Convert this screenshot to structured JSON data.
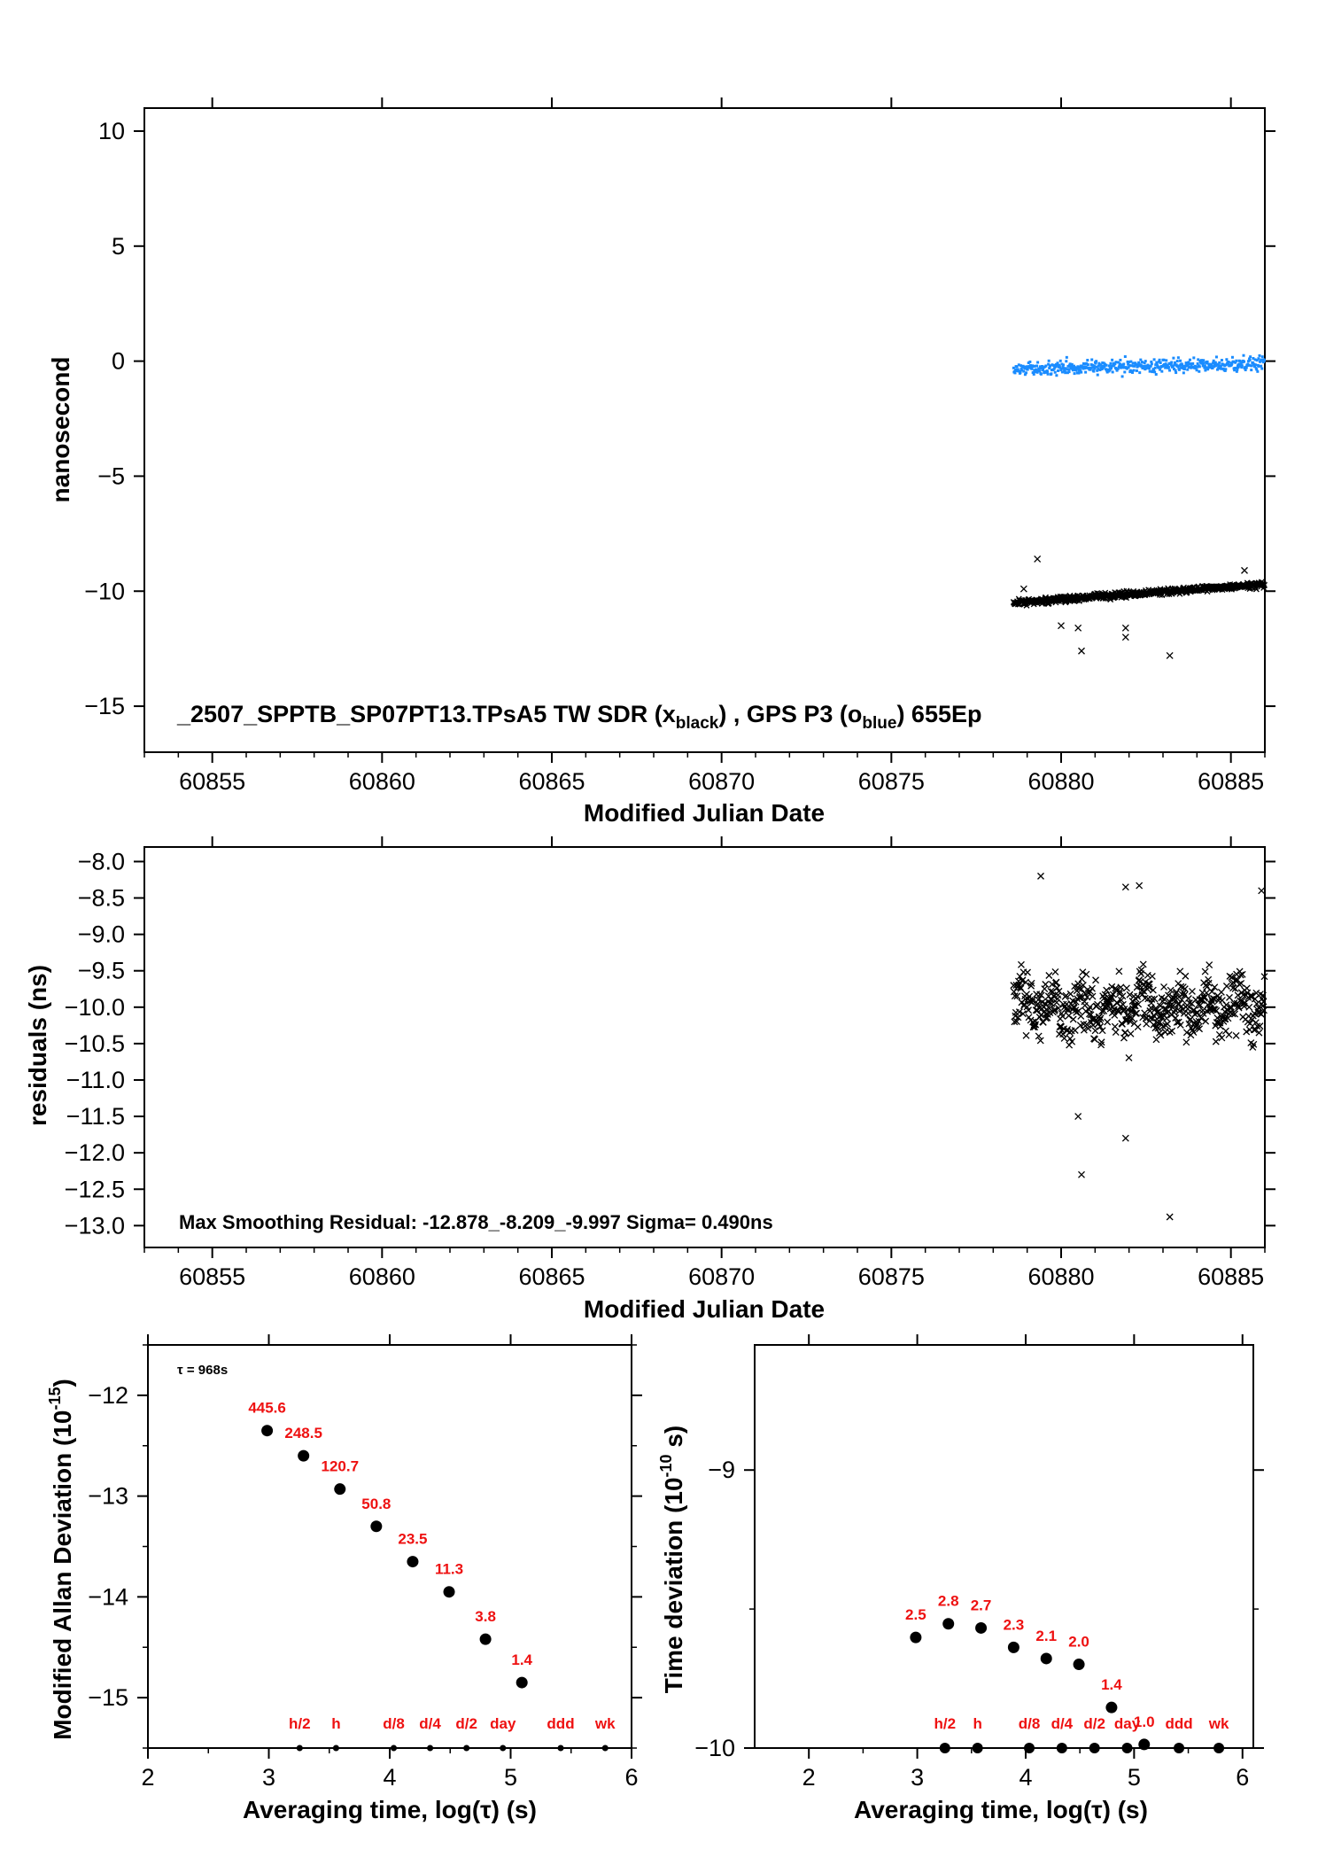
{
  "chart_data": [
    {
      "type": "scatter",
      "title": "_2507_SPPTB_SP07PT13.TPsA5     TW SDR (x",
      "title_parts": [
        "_2507_SPPTB_SP07PT13.TPsA5     TW SDR (x",
        "black",
        ") ,  GPS P3 (o",
        "blue",
        ")  655Ep"
      ],
      "xlabel": "Modified Julian Date",
      "ylabel": "nanosecond",
      "xlim": [
        60853,
        60886
      ],
      "ylim": [
        -17,
        11
      ],
      "xticks": [
        60855,
        60860,
        60865,
        60870,
        60875,
        60880,
        60885
      ],
      "yticks": [
        10,
        5,
        0,
        -5,
        -10,
        -15
      ],
      "ytick_labels": [
        "10",
        "5",
        "0",
        "−5",
        "−10",
        "−15"
      ],
      "series": [
        {
          "marker": "x",
          "color": "#000000",
          "x_range": [
            60878.6,
            60886
          ],
          "center": -10.5,
          "trend": 0.8,
          "spread": 0.12,
          "outliers": [
            [
              60879.3,
              -8.6
            ],
            [
              60878.9,
              -9.9
            ],
            [
              60880.6,
              -12.6
            ],
            [
              60880.0,
              -11.5
            ],
            [
              60881.9,
              -12.0
            ],
            [
              60881.9,
              -11.6
            ],
            [
              60883.2,
              -12.8
            ],
            [
              60885.4,
              -9.1
            ],
            [
              60880.5,
              -11.6
            ]
          ]
        },
        {
          "marker": "dot",
          "color": "#1a8cff",
          "x_range": [
            60878.6,
            60886
          ],
          "center": -0.35,
          "trend": 0.25,
          "spread": 0.3
        }
      ]
    },
    {
      "type": "scatter",
      "title": "Max Smoothing Residual: -12.878_-8.209_-9.997  Sigma= 0.490ns",
      "xlabel": "Modified Julian Date",
      "ylabel": "residuals (ns)",
      "xlim": [
        60853,
        60886
      ],
      "ylim": [
        -13.3,
        -7.8
      ],
      "xticks": [
        60855,
        60860,
        60865,
        60870,
        60875,
        60880,
        60885
      ],
      "yticks": [
        -8.0,
        -8.5,
        -9.0,
        -9.5,
        -10.0,
        -10.5,
        -11.0,
        -11.5,
        -12.0,
        -12.5,
        -13.0
      ],
      "ytick_labels": [
        "−8.0",
        "−8.5",
        "−9.0",
        "−9.5",
        "−10.0",
        "−10.5",
        "−11.0",
        "−11.5",
        "−12.0",
        "−12.5",
        "−13.0"
      ],
      "series": [
        {
          "marker": "x",
          "color": "#000000",
          "x_range": [
            60878.6,
            60886
          ],
          "center": -10.0,
          "spread": 0.4,
          "outliers": [
            [
              60879.4,
              -8.2
            ],
            [
              60880.6,
              -12.3
            ],
            [
              60881.9,
              -11.8
            ],
            [
              60883.2,
              -12.88
            ],
            [
              60882.3,
              -8.33
            ],
            [
              60881.9,
              -8.35
            ],
            [
              60880.5,
              -11.5
            ],
            [
              60885.9,
              -8.4
            ]
          ]
        }
      ]
    },
    {
      "type": "scatter",
      "xlabel": "Averaging time, log(τ) (s)",
      "ylabel": "Modified Allan Deviation (10",
      "ylabel_sup": "-15",
      "ylabel_end": ")",
      "annotation": "τ = 968s",
      "xlim": [
        2,
        6
      ],
      "ylim": [
        -15.5,
        -11.5
      ],
      "xticks": [
        2,
        3,
        4,
        5,
        6
      ],
      "yticks": [
        -12,
        -13,
        -14,
        -15
      ],
      "ytick_labels": [
        "−12",
        "−13",
        "−14",
        "−15"
      ],
      "points": [
        {
          "x": 2.986,
          "y": -12.35,
          "label": "445.6"
        },
        {
          "x": 3.287,
          "y": -12.6,
          "label": "248.5"
        },
        {
          "x": 3.588,
          "y": -12.93,
          "label": "120.7"
        },
        {
          "x": 3.889,
          "y": -13.3,
          "label": "50.8"
        },
        {
          "x": 4.19,
          "y": -13.65,
          "label": "23.5"
        },
        {
          "x": 4.491,
          "y": -13.95,
          "label": "11.3"
        },
        {
          "x": 4.792,
          "y": -14.42,
          "label": "3.8"
        },
        {
          "x": 5.093,
          "y": -14.85,
          "label": "1.4"
        }
      ],
      "markers": [
        {
          "x": 3.255,
          "label": "h/2"
        },
        {
          "x": 3.556,
          "label": "h"
        },
        {
          "x": 4.033,
          "label": "d/8"
        },
        {
          "x": 4.334,
          "label": "d/4"
        },
        {
          "x": 4.635,
          "label": "d/2"
        },
        {
          "x": 4.936,
          "label": "day"
        },
        {
          "x": 5.414,
          "label": "ddd"
        },
        {
          "x": 5.782,
          "label": "wk"
        }
      ]
    },
    {
      "type": "scatter",
      "xlabel": "Averaging time, log(τ) (s)",
      "ylabel": "Time deviation (10",
      "ylabel_sup": "-10",
      "ylabel_end": " s)",
      "xlim": [
        1.5,
        6.1
      ],
      "ylim": [
        -10,
        -8.55
      ],
      "xticks": [
        2,
        3,
        4,
        5,
        6
      ],
      "yticks": [
        -9,
        -10
      ],
      "ytick_labels": [
        "−9",
        "−10"
      ],
      "points": [
        {
          "x": 2.986,
          "y": -9.602,
          "label": "2.5"
        },
        {
          "x": 3.287,
          "y": -9.553,
          "label": "2.8"
        },
        {
          "x": 3.588,
          "y": -9.568,
          "label": "2.7"
        },
        {
          "x": 3.889,
          "y": -9.638,
          "label": "2.3"
        },
        {
          "x": 4.19,
          "y": -9.678,
          "label": "2.1"
        },
        {
          "x": 4.491,
          "y": -9.699,
          "label": "2.0"
        },
        {
          "x": 4.792,
          "y": -9.854,
          "label": "1.4"
        },
        {
          "x": 5.093,
          "y": -9.987,
          "label": "1.0"
        }
      ],
      "markers": [
        {
          "x": 3.255,
          "label": "h/2"
        },
        {
          "x": 3.556,
          "label": "h"
        },
        {
          "x": 4.033,
          "label": "d/8"
        },
        {
          "x": 4.334,
          "label": "d/4"
        },
        {
          "x": 4.635,
          "label": "d/2"
        },
        {
          "x": 4.936,
          "label": "day"
        },
        {
          "x": 5.414,
          "label": "ddd"
        },
        {
          "x": 5.782,
          "label": "wk"
        }
      ]
    }
  ]
}
